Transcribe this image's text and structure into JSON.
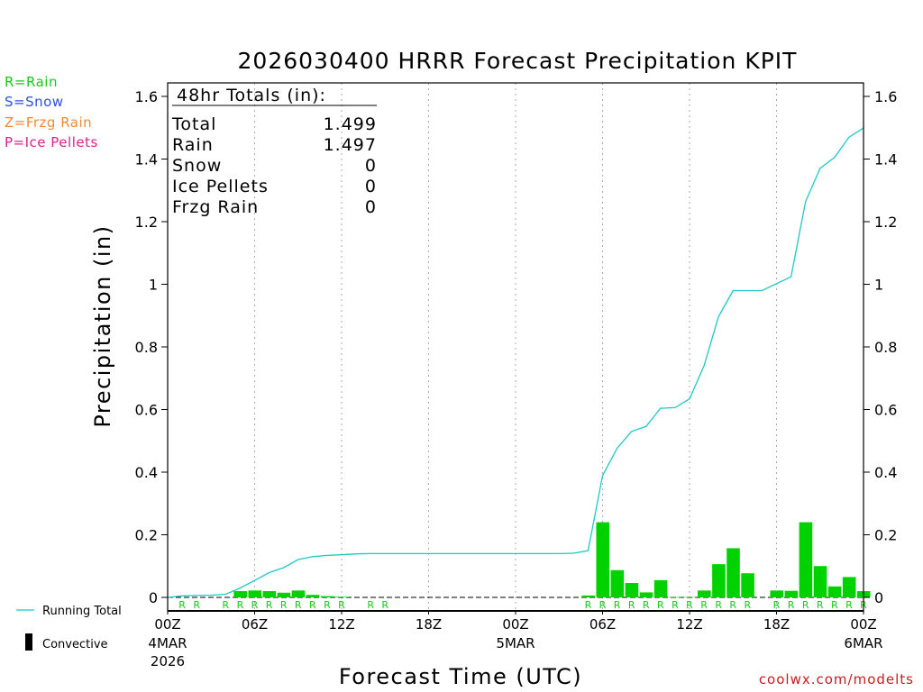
{
  "chart_data": {
    "type": "bar",
    "title": "2026030400 HRRR Forecast Precipitation KPIT",
    "xlabel": "Forecast Time (UTC)",
    "ylabel": "Precipitation (in)",
    "xlim_hours": [
      0,
      48
    ],
    "ylim": [
      0,
      1.6
    ],
    "yticks": [
      "0",
      "0.2",
      "0.4",
      "0.6",
      "0.8",
      "1",
      "1.2",
      "1.4",
      "1.6"
    ],
    "ytick_values": [
      0,
      0.2,
      0.4,
      0.6,
      0.8,
      1.0,
      1.2,
      1.4,
      1.6
    ],
    "xticks": [
      {
        "hour": 0,
        "label": "00Z",
        "sub1": "4MAR",
        "sub2": "2026"
      },
      {
        "hour": 6,
        "label": "06Z",
        "sub1": "",
        "sub2": ""
      },
      {
        "hour": 12,
        "label": "12Z",
        "sub1": "",
        "sub2": ""
      },
      {
        "hour": 18,
        "label": "18Z",
        "sub1": "",
        "sub2": ""
      },
      {
        "hour": 24,
        "label": "00Z",
        "sub1": "5MAR",
        "sub2": ""
      },
      {
        "hour": 30,
        "label": "06Z",
        "sub1": "",
        "sub2": ""
      },
      {
        "hour": 36,
        "label": "12Z",
        "sub1": "",
        "sub2": ""
      },
      {
        "hour": 42,
        "label": "18Z",
        "sub1": "",
        "sub2": ""
      },
      {
        "hour": 48,
        "label": "00Z",
        "sub1": "6MAR",
        "sub2": ""
      }
    ],
    "hourly_precip_hours": [
      5,
      6,
      7,
      8,
      9,
      10,
      11,
      12,
      29,
      30,
      31,
      32,
      33,
      34,
      35,
      36,
      37,
      38,
      39,
      40,
      42,
      43,
      44,
      45,
      46,
      47,
      48
    ],
    "hourly_precip": [
      0.02,
      0.022,
      0.02,
      0.015,
      0.022,
      0.008,
      0.004,
      0.002,
      0.006,
      0.24,
      0.087,
      0.046,
      0.016,
      0.055,
      0.001,
      0.001,
      0.022,
      0.106,
      0.157,
      0.077,
      0.022,
      0.021,
      0.24,
      0.1,
      0.035,
      0.065,
      0.02
    ],
    "running_total_hours": [
      0,
      1,
      2,
      3,
      4,
      5,
      6,
      7,
      8,
      9,
      10,
      11,
      12,
      13,
      14,
      15,
      16,
      17,
      18,
      19,
      20,
      21,
      22,
      23,
      24,
      25,
      26,
      27,
      28,
      29,
      30,
      31,
      32,
      33,
      34,
      35,
      36,
      37,
      38,
      39,
      40,
      41,
      42,
      43,
      44,
      45,
      46,
      47,
      48
    ],
    "running_total": [
      0,
      0.005,
      0.006,
      0.007,
      0.01,
      0.03,
      0.054,
      0.079,
      0.095,
      0.121,
      0.13,
      0.134,
      0.136,
      0.139,
      0.14,
      0.14,
      0.14,
      0.14,
      0.14,
      0.14,
      0.14,
      0.14,
      0.14,
      0.14,
      0.14,
      0.14,
      0.14,
      0.14,
      0.141,
      0.149,
      0.389,
      0.476,
      0.53,
      0.546,
      0.604,
      0.606,
      0.634,
      0.74,
      0.897,
      0.98,
      0.98,
      0.98,
      1.002,
      1.024,
      1.264,
      1.37,
      1.405,
      1.47,
      1.499
    ],
    "precip_type_markers": {
      "letter": "R",
      "hours": [
        1,
        2,
        4,
        5,
        6,
        7,
        8,
        9,
        10,
        11,
        12,
        14,
        15,
        29,
        30,
        31,
        32,
        33,
        34,
        35,
        36,
        37,
        38,
        39,
        40,
        42,
        43,
        44,
        45,
        46,
        47,
        48
      ]
    },
    "series": [
      {
        "name": "Running Total",
        "color": "#1cc8c8"
      },
      {
        "name": "Convective",
        "color": "#000000"
      }
    ],
    "precip_type_legend": [
      {
        "text": "R=Rain",
        "color": "#18c818"
      },
      {
        "text": "S=Snow",
        "color": "#3050e0"
      },
      {
        "text": "Z=Frzg Rain",
        "color": "#f08a30"
      },
      {
        "text": "P=Ice Pellets",
        "color": "#e0208a"
      }
    ],
    "bar_color": "#00d200",
    "totals_box": {
      "header": "48hr Totals (in):",
      "rows": [
        {
          "label": "Total",
          "value": "1.499"
        },
        {
          "label": "Rain",
          "value": "1.497"
        },
        {
          "label": "Snow",
          "value": "0"
        },
        {
          "label": "Ice Pellets",
          "value": "0"
        },
        {
          "label": "Frzg Rain",
          "value": "0"
        }
      ]
    },
    "credit": "coolwx.com/modelts",
    "credit_color": "#c81e1e"
  }
}
